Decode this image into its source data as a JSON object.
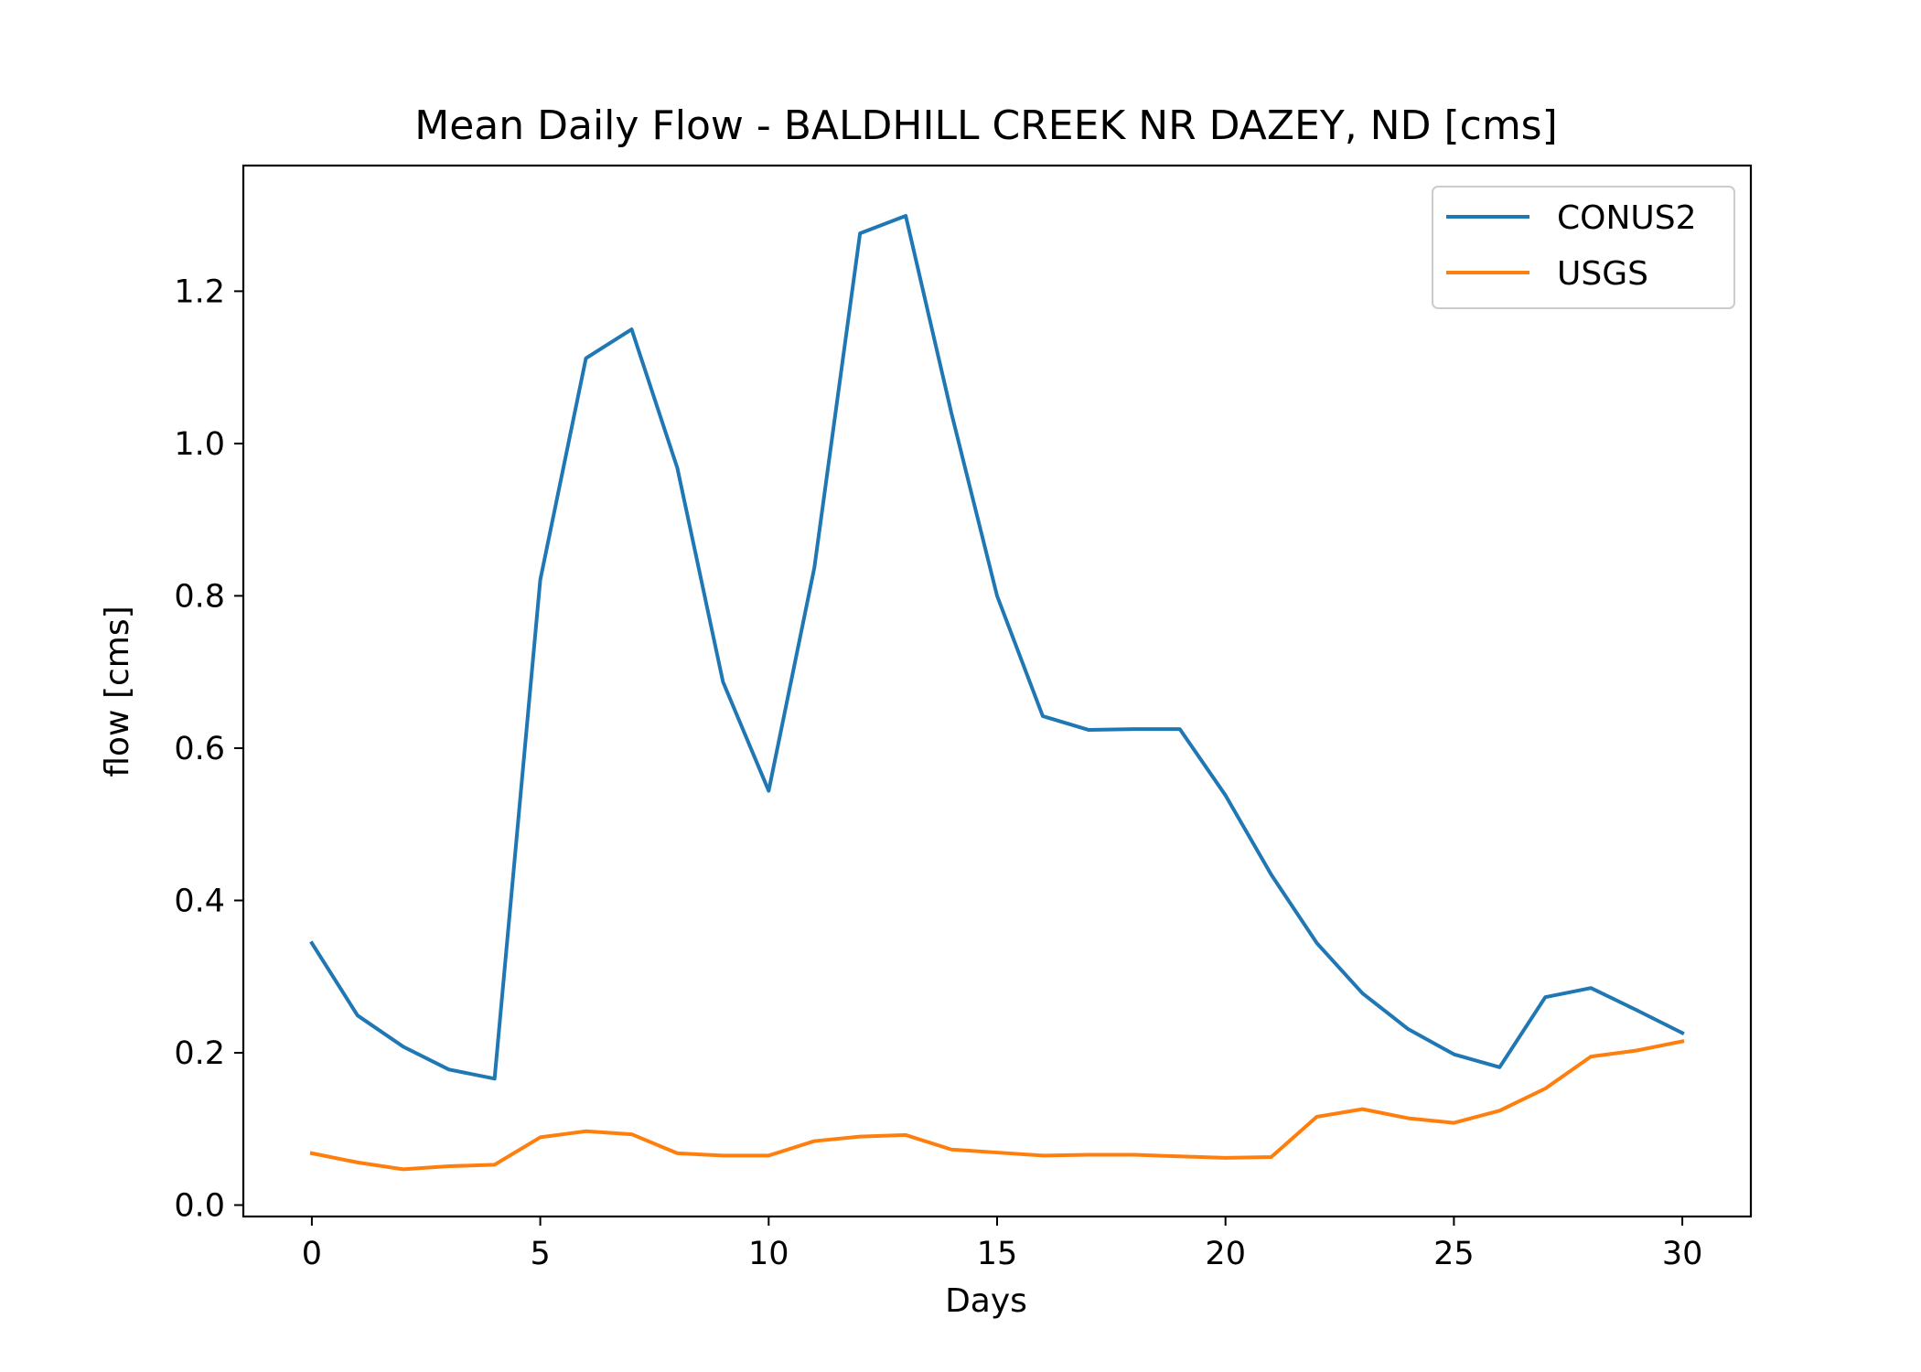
{
  "chart_data": {
    "type": "line",
    "title": "Mean Daily Flow - BALDHILL CREEK NR DAZEY, ND [cms]",
    "xlabel": "Days",
    "ylabel": "flow [cms]",
    "xlim": [
      -1.5,
      31.5
    ],
    "ylim": [
      -0.015,
      1.365
    ],
    "xticks": [
      0,
      5,
      10,
      15,
      20,
      25,
      30
    ],
    "xtick_labels": [
      "0",
      "5",
      "10",
      "15",
      "20",
      "25",
      "30"
    ],
    "yticks": [
      0.0,
      0.2,
      0.4,
      0.6,
      0.8,
      1.0,
      1.2
    ],
    "ytick_labels": [
      "0.0",
      "0.2",
      "0.4",
      "0.6",
      "0.8",
      "1.0",
      "1.2"
    ],
    "grid": false,
    "legend_position": "top-right",
    "x": [
      0,
      1,
      2,
      3,
      4,
      5,
      6,
      7,
      8,
      9,
      10,
      11,
      12,
      13,
      14,
      15,
      16,
      17,
      18,
      19,
      20,
      21,
      22,
      23,
      24,
      25,
      26,
      27,
      28,
      29,
      30
    ],
    "series": [
      {
        "name": "CONUS2",
        "color": "#1f77b4",
        "values": [
          0.344,
          0.249,
          0.208,
          0.178,
          0.166,
          0.821,
          1.112,
          1.15,
          0.968,
          0.687,
          0.544,
          0.837,
          1.276,
          1.299,
          1.04,
          0.8,
          0.642,
          0.624,
          0.625,
          0.625,
          0.538,
          0.434,
          0.344,
          0.278,
          0.231,
          0.198,
          0.181,
          0.273,
          0.285,
          0.256,
          0.226
        ]
      },
      {
        "name": "USGS",
        "color": "#ff7f0e",
        "values": [
          0.068,
          0.056,
          0.047,
          0.051,
          0.053,
          0.089,
          0.097,
          0.093,
          0.068,
          0.065,
          0.065,
          0.084,
          0.09,
          0.092,
          0.073,
          0.069,
          0.065,
          0.066,
          0.066,
          0.064,
          0.062,
          0.063,
          0.116,
          0.126,
          0.114,
          0.108,
          0.124,
          0.153,
          0.195,
          0.203,
          0.215
        ]
      }
    ]
  }
}
